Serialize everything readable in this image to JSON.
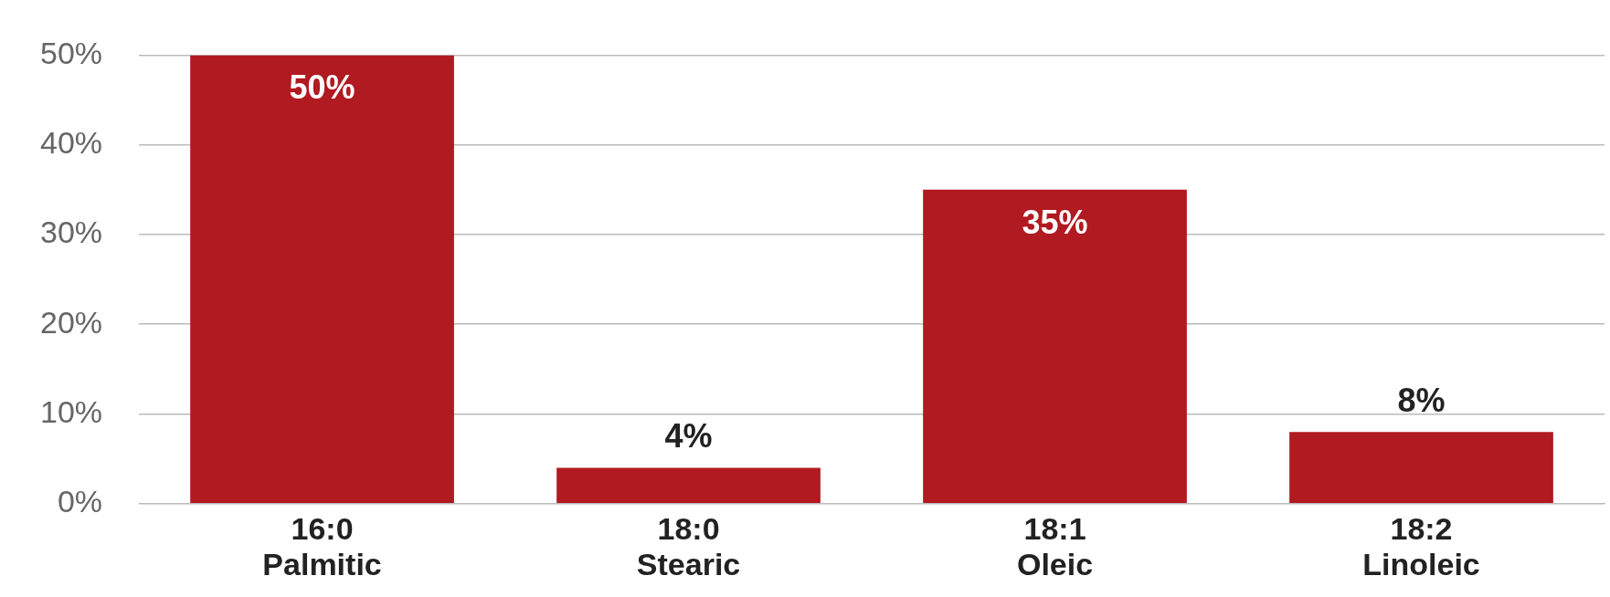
{
  "chart_data": {
    "type": "bar",
    "categories": [
      "16:0\nPalmitic",
      "18:0\nStearic",
      "18:1\nOleic",
      "18:2\nLinoleic"
    ],
    "values": [
      50,
      4,
      35,
      8
    ],
    "color": "#b11a21",
    "value_labels": [
      "50%",
      "4%",
      "35%",
      "8%"
    ],
    "ylim": [
      0,
      50
    ],
    "yticks": [
      {
        "value": 0,
        "label": "0%"
      },
      {
        "value": 10,
        "label": "10%"
      },
      {
        "value": 20,
        "label": "20%"
      },
      {
        "value": 30,
        "label": "30%"
      },
      {
        "value": 40,
        "label": "40%"
      },
      {
        "value": 50,
        "label": "50%"
      }
    ],
    "grid": "y",
    "legend": false
  }
}
